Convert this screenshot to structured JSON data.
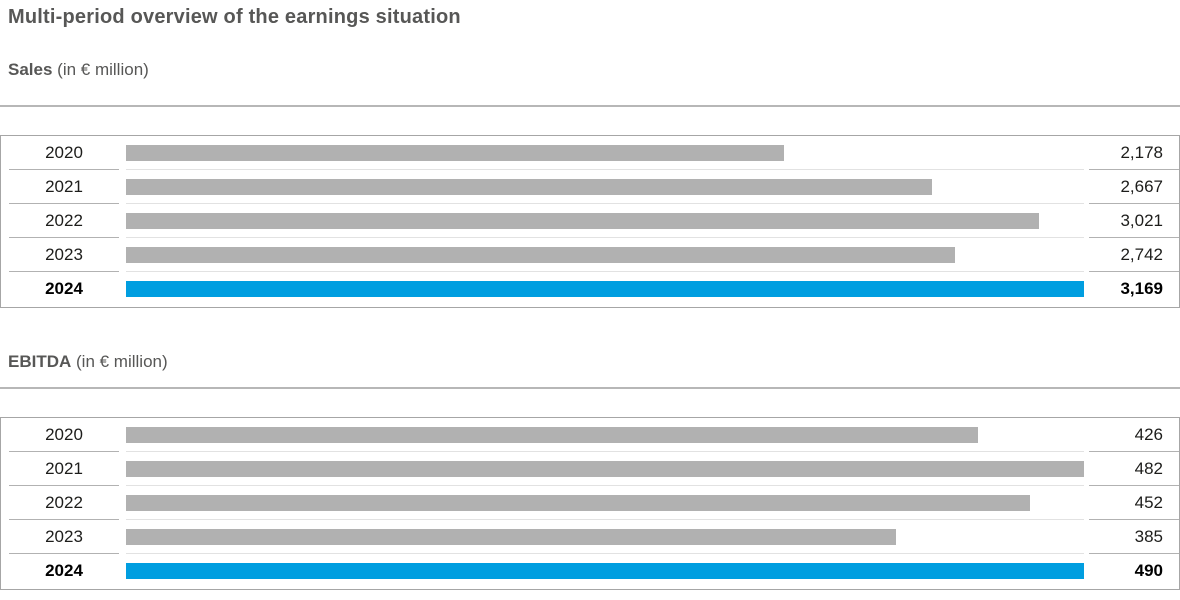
{
  "page": {
    "title": "Multi-period overview of the earnings situation"
  },
  "colors": {
    "highlight": "#009EE0",
    "bar": "#B1B1B1",
    "heading": "#575756",
    "text": "#1D1D1B"
  },
  "chart_data": [
    {
      "type": "bar",
      "orientation": "horizontal",
      "title": "Sales",
      "unit_label": "(in € million)",
      "categories": [
        "2020",
        "2021",
        "2022",
        "2023",
        "2024"
      ],
      "values": [
        2178,
        2667,
        3021,
        2742,
        3169
      ],
      "value_labels": [
        "2,178",
        "2,667",
        "3,021",
        "2,742",
        "3,169"
      ],
      "highlight_index": 4,
      "bar_axis_max": 3169,
      "legend": "none",
      "grid": "none"
    },
    {
      "type": "bar",
      "orientation": "horizontal",
      "title": "EBITDA",
      "unit_label": "(in € million)",
      "categories": [
        "2020",
        "2021",
        "2022",
        "2023",
        "2024"
      ],
      "values": [
        426,
        482,
        452,
        385,
        490
      ],
      "value_labels": [
        "426",
        "482",
        "452",
        "385",
        "490"
      ],
      "highlight_index": 4,
      "bar_axis_max": 479,
      "legend": "none",
      "grid": "none"
    }
  ]
}
